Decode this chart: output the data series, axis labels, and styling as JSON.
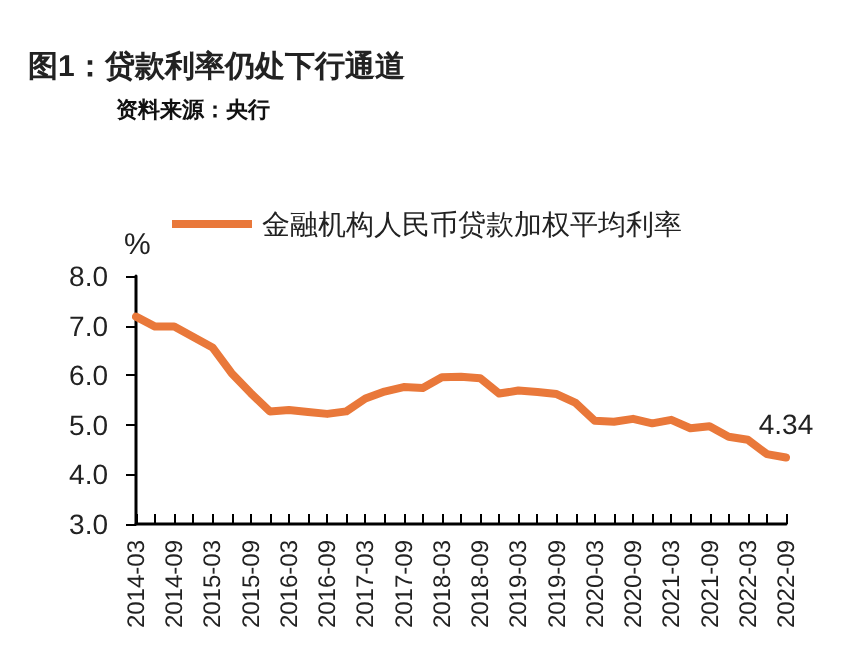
{
  "chart_data": {
    "type": "line",
    "title": "图1：贷款利率仍处下行通道",
    "annotations": [
      "资料来源：央行"
    ],
    "ylabel": "%",
    "categories": [
      "2014-03",
      null,
      "2014-09",
      null,
      "2015-03",
      null,
      "2015-09",
      null,
      "2016-03",
      null,
      "2016-09",
      null,
      "2017-03",
      null,
      "2017-09",
      null,
      "2018-03",
      null,
      "2018-09",
      null,
      "2019-03",
      null,
      "2019-09",
      null,
      "2020-03",
      null,
      "2020-09",
      null,
      "2021-03",
      null,
      "2021-09",
      null,
      "2022-03",
      null,
      "2022-09"
    ],
    "series": [
      {
        "name": "金融机构人民币贷款加权平均利率",
        "color": "#e9783a",
        "values": [
          7.18,
          6.98,
          6.98,
          6.77,
          6.56,
          6.04,
          5.64,
          5.27,
          5.3,
          5.26,
          5.22,
          5.27,
          5.53,
          5.67,
          5.76,
          5.74,
          5.96,
          5.97,
          5.94,
          5.63,
          5.69,
          5.66,
          5.62,
          5.44,
          5.08,
          5.06,
          5.12,
          5.03,
          5.1,
          4.93,
          4.97,
          4.76,
          4.7,
          4.41,
          4.34
        ],
        "value_labels": [
          null,
          null,
          null,
          null,
          null,
          null,
          null,
          null,
          null,
          null,
          null,
          null,
          null,
          null,
          null,
          null,
          null,
          null,
          null,
          null,
          null,
          null,
          null,
          null,
          null,
          null,
          null,
          null,
          null,
          null,
          null,
          null,
          null,
          null,
          "4.34"
        ]
      }
    ],
    "ylim": [
      3,
      8
    ],
    "yticks": [
      {
        "value": 3,
        "label": "3.0"
      },
      {
        "value": 4,
        "label": "4.0"
      },
      {
        "value": 5,
        "label": "5.0"
      },
      {
        "value": 6,
        "label": "6.0"
      },
      {
        "value": 7,
        "label": "7.0"
      },
      {
        "value": 8,
        "label": "8.0"
      }
    ],
    "grid": false,
    "legend": "top",
    "marker": "none",
    "line_style": "solid"
  }
}
